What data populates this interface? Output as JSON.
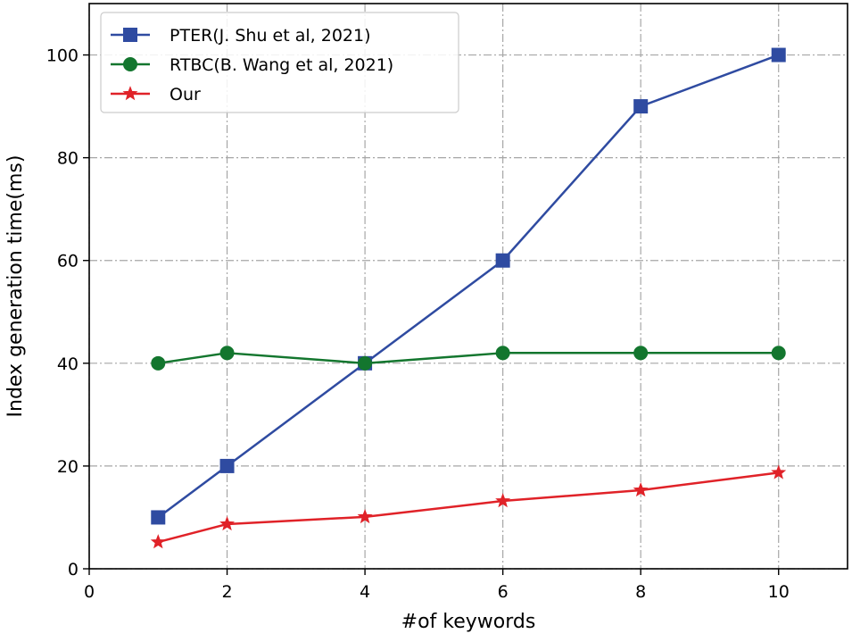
{
  "chart_data": {
    "type": "line",
    "xlabel": "#of keywords",
    "ylabel": "Index generation time(ms)",
    "xlim": [
      0,
      11
    ],
    "ylim": [
      0,
      110
    ],
    "xticks": [
      0,
      2,
      4,
      6,
      8,
      10
    ],
    "yticks": [
      0,
      20,
      40,
      60,
      80,
      100
    ],
    "grid": true,
    "legend_position": "top-left",
    "series": [
      {
        "name": "PTER(J. Shu et al, 2021)",
        "color": "#2f4ba1",
        "marker": "square",
        "x": [
          1,
          2,
          4,
          6,
          8,
          10
        ],
        "values": [
          10,
          20,
          40,
          60,
          90,
          100
        ]
      },
      {
        "name": "RTBC(B. Wang et al, 2021)",
        "color": "#13762e",
        "marker": "circle",
        "x": [
          1,
          2,
          4,
          6,
          8,
          10
        ],
        "values": [
          40,
          42,
          40,
          42,
          42,
          42
        ]
      },
      {
        "name": "Our",
        "color": "#e02228",
        "marker": "star",
        "x": [
          1,
          2,
          4,
          6,
          8,
          10
        ],
        "values": [
          5.2,
          8.7,
          10.1,
          13.2,
          15.3,
          18.7
        ]
      }
    ]
  }
}
